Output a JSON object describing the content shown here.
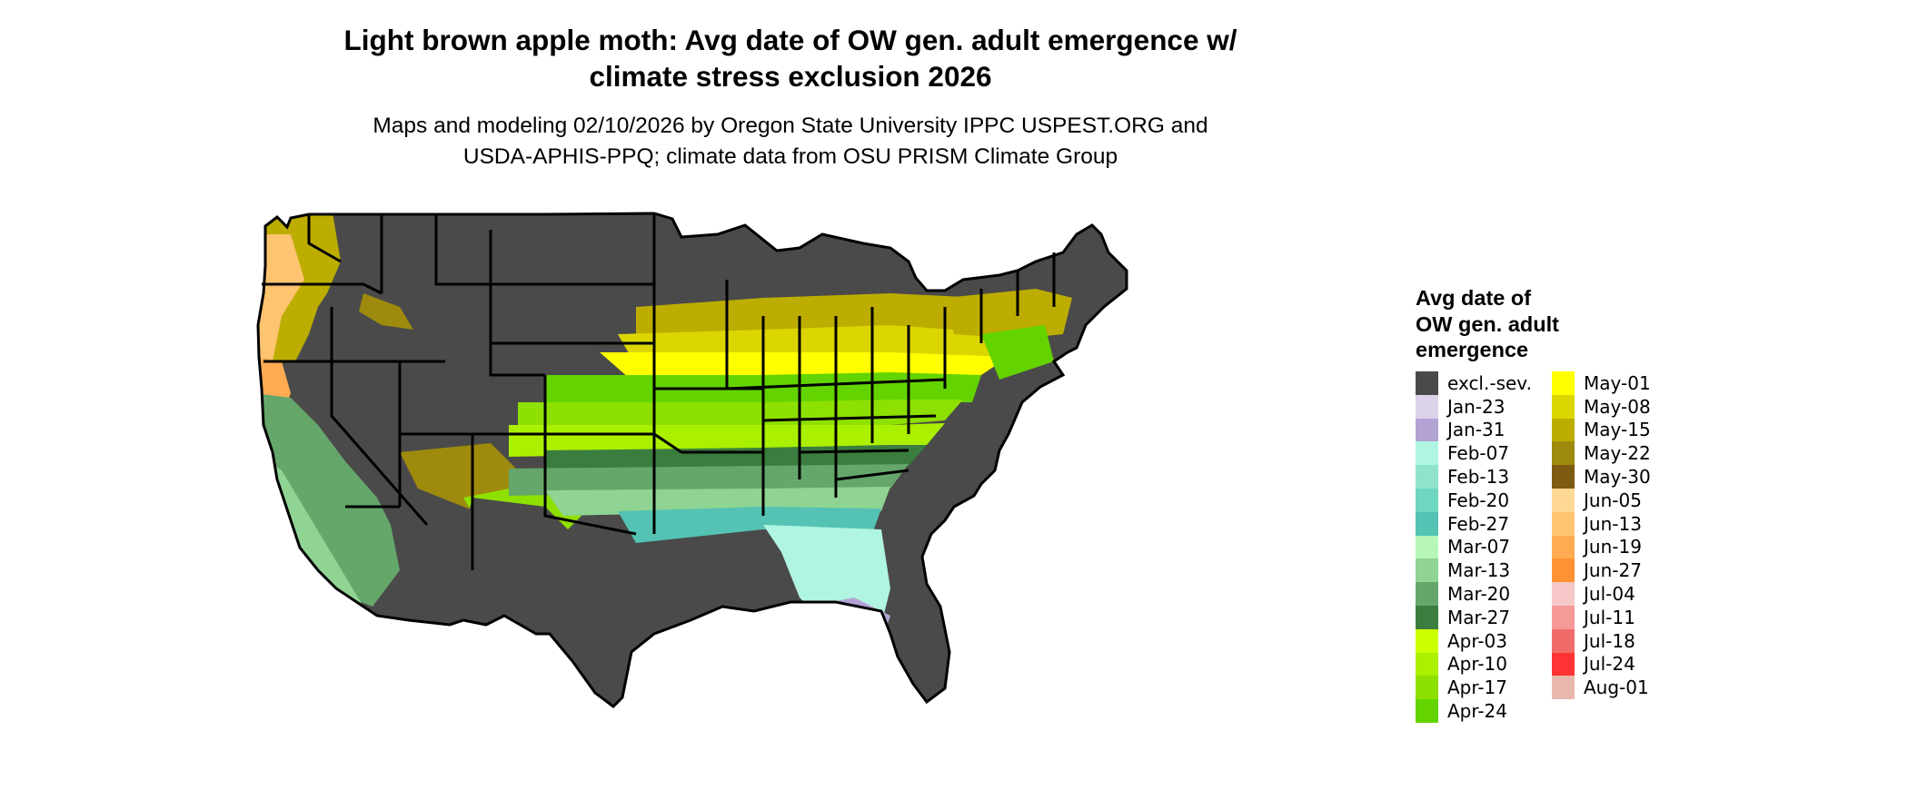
{
  "header": {
    "title_line1": "Light brown apple moth: Avg date of OW gen. adult emergence w/",
    "title_line2": "climate stress exclusion 2026",
    "subtitle_line1": "Maps and modeling 02/10/2026 by Oregon State University IPPC USPEST.ORG and",
    "subtitle_line2": "USDA-APHIS-PPQ; climate data from OSU PRISM Climate Group"
  },
  "legend": {
    "title_line1": "Avg date of",
    "title_line2": "OW gen. adult",
    "title_line3": "emergence",
    "items": [
      {
        "label": "excl.-sev.",
        "color": "#4a4a4a"
      },
      {
        "label": "Jan-23",
        "color": "#dcd3ea"
      },
      {
        "label": "Jan-31",
        "color": "#b3a3d4"
      },
      {
        "label": "Feb-07",
        "color": "#aff5e1"
      },
      {
        "label": "Feb-13",
        "color": "#8fe3cd"
      },
      {
        "label": "Feb-20",
        "color": "#6fd6c2"
      },
      {
        "label": "Feb-27",
        "color": "#54c3b3"
      },
      {
        "label": "Mar-07",
        "color": "#b7f7b5"
      },
      {
        "label": "Mar-13",
        "color": "#8fd492"
      },
      {
        "label": "Mar-20",
        "color": "#65a76a"
      },
      {
        "label": "Mar-27",
        "color": "#3b7d3f"
      },
      {
        "label": "Apr-03",
        "color": "#ccff00"
      },
      {
        "label": "Apr-10",
        "color": "#aaf000"
      },
      {
        "label": "Apr-17",
        "color": "#8ee000"
      },
      {
        "label": "Apr-24",
        "color": "#63d400"
      },
      {
        "label": "May-01",
        "color": "#ffff00"
      },
      {
        "label": "May-08",
        "color": "#dcd600"
      },
      {
        "label": "May-15",
        "color": "#bcad00"
      },
      {
        "label": "May-22",
        "color": "#9e8a0d"
      },
      {
        "label": "May-30",
        "color": "#7e5a12"
      },
      {
        "label": "Jun-05",
        "color": "#ffd993"
      },
      {
        "label": "Jun-13",
        "color": "#ffc470"
      },
      {
        "label": "Jun-19",
        "color": "#ffab52"
      },
      {
        "label": "Jun-27",
        "color": "#ff9232"
      },
      {
        "label": "Jul-04",
        "color": "#f5c7c7"
      },
      {
        "label": "Jul-11",
        "color": "#f59999"
      },
      {
        "label": "Jul-18",
        "color": "#f26b6b"
      },
      {
        "label": "Jul-24",
        "color": "#ff3333"
      },
      {
        "label": "Aug-01",
        "color": "#e8b8ad"
      }
    ]
  }
}
